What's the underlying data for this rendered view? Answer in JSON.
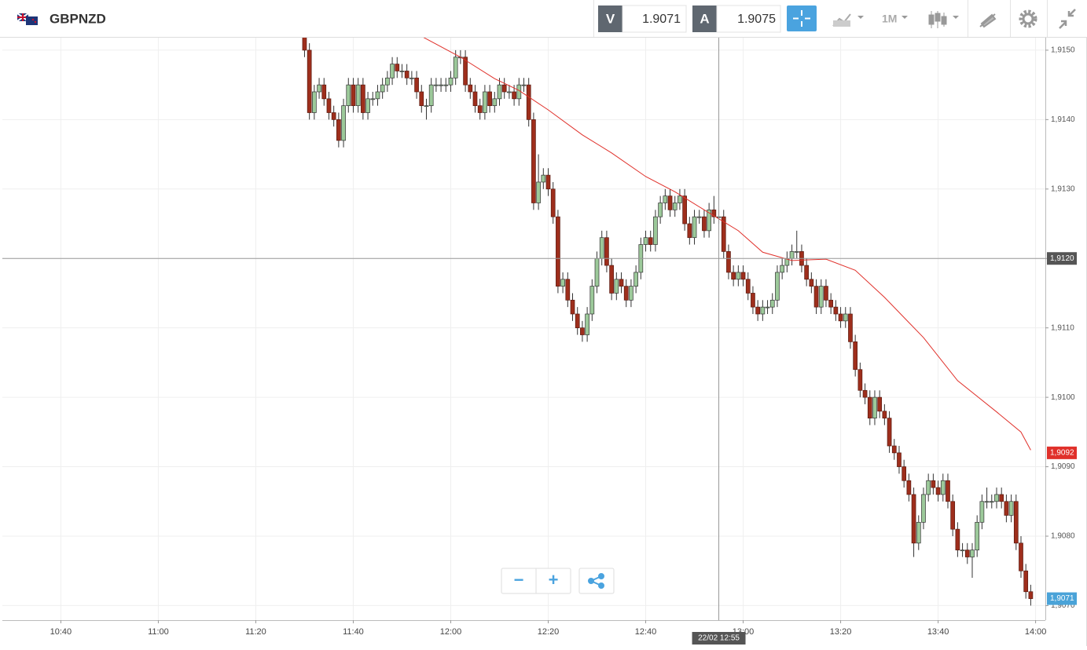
{
  "header": {
    "symbol": "GBPNZD",
    "bid_label": "V",
    "bid": "1.9071",
    "ask_label": "A",
    "ask": "1.9075",
    "timeframe": "1M"
  },
  "zoom": {
    "minus": "−",
    "plus": "+"
  },
  "chart_data": {
    "type": "candlestick",
    "x": [
      "11:30",
      "11:31",
      "11:32",
      "11:33",
      "11:34",
      "11:35",
      "11:36",
      "11:37",
      "11:38",
      "11:39",
      "11:40",
      "11:41",
      "11:42",
      "11:43",
      "11:44",
      "11:45",
      "11:46",
      "11:47",
      "11:48",
      "11:49",
      "11:50",
      "11:51",
      "11:52",
      "11:53",
      "11:54",
      "11:55",
      "11:56",
      "11:57",
      "11:58",
      "11:59",
      "12:00",
      "12:01",
      "12:02",
      "12:03",
      "12:04",
      "12:05",
      "12:06",
      "12:07",
      "12:08",
      "12:09",
      "12:10",
      "12:11",
      "12:12",
      "12:13",
      "12:14",
      "12:15",
      "12:16",
      "12:17",
      "12:18",
      "12:19",
      "12:20",
      "12:21",
      "12:22",
      "12:23",
      "12:24",
      "12:25",
      "12:26",
      "12:27",
      "12:28",
      "12:29",
      "12:30",
      "12:31",
      "12:32",
      "12:33",
      "12:34",
      "12:35",
      "12:36",
      "12:37",
      "12:38",
      "12:39",
      "12:40",
      "12:41",
      "12:42",
      "12:43",
      "12:44",
      "12:45",
      "12:46",
      "12:47",
      "12:48",
      "12:49",
      "12:50",
      "12:51",
      "12:52",
      "12:53",
      "12:54",
      "12:55",
      "12:56",
      "12:57",
      "12:58",
      "12:59",
      "13:00",
      "13:01",
      "13:02",
      "13:03",
      "13:04",
      "13:05",
      "13:06",
      "13:07",
      "13:08",
      "13:09",
      "13:10",
      "13:11",
      "13:12",
      "13:13",
      "13:14",
      "13:15",
      "13:16",
      "13:17",
      "13:18",
      "13:19",
      "13:20",
      "13:21",
      "13:22",
      "13:23",
      "13:24",
      "13:25",
      "13:26",
      "13:27",
      "13:28",
      "13:29",
      "13:30",
      "13:31",
      "13:32",
      "13:33",
      "13:34",
      "13:35",
      "13:36",
      "13:37",
      "13:38",
      "13:39",
      "13:40",
      "13:41",
      "13:42",
      "13:43",
      "13:44",
      "13:45",
      "13:46",
      "13:47",
      "13:48",
      "13:49",
      "13:50",
      "13:51",
      "13:52",
      "13:53",
      "13:54",
      "13:55",
      "13:56",
      "13:57",
      "13:58",
      "13:59"
    ],
    "open": [
      1.9152,
      1.915,
      1.9141,
      1.9144,
      1.9145,
      1.9143,
      1.9141,
      1.914,
      1.9137,
      1.9142,
      1.9145,
      1.9142,
      1.9145,
      1.9141,
      1.9143,
      1.9143,
      1.9144,
      1.9145,
      1.9146,
      1.9148,
      1.9147,
      1.9147,
      1.9146,
      1.9146,
      1.9144,
      1.9142,
      1.9142,
      1.9145,
      1.9145,
      1.9145,
      1.9145,
      1.9146,
      1.9149,
      1.9149,
      1.9145,
      1.9144,
      1.9142,
      1.9141,
      1.9144,
      1.9142,
      1.9143,
      1.9145,
      1.9144,
      1.9144,
      1.9143,
      1.9145,
      1.9145,
      1.914,
      1.9128,
      1.9131,
      1.9132,
      1.913,
      1.9126,
      1.9116,
      1.9117,
      1.9114,
      1.9112,
      1.911,
      1.9109,
      1.9112,
      1.9116,
      1.912,
      1.9123,
      1.9119,
      1.9115,
      1.9117,
      1.9116,
      1.9114,
      1.9116,
      1.9118,
      1.9122,
      1.9123,
      1.9122,
      1.9126,
      1.9128,
      1.9129,
      1.9127,
      1.9128,
      1.9129,
      1.9125,
      1.9123,
      1.9126,
      1.9126,
      1.9124,
      1.9127,
      1.9126,
      1.9126,
      1.9121,
      1.9118,
      1.9117,
      1.9118,
      1.9117,
      1.9115,
      1.9113,
      1.9112,
      1.9113,
      1.9113,
      1.9114,
      1.9118,
      1.9119,
      1.912,
      1.9121,
      1.9121,
      1.9119,
      1.9117,
      1.9116,
      1.9113,
      1.9116,
      1.9114,
      1.9113,
      1.9112,
      1.9111,
      1.9112,
      1.9108,
      1.9104,
      1.9101,
      1.91,
      1.9097,
      1.91,
      1.9098,
      1.9097,
      1.9093,
      1.9092,
      1.909,
      1.9088,
      1.9086,
      1.9079,
      1.9082,
      1.9086,
      1.9088,
      1.9087,
      1.9086,
      1.9088,
      1.9085,
      1.9081,
      1.9078,
      1.9078,
      1.9077,
      1.9078,
      1.9082,
      1.9085,
      1.9085,
      1.9085,
      1.9086,
      1.9085,
      1.9083,
      1.9085,
      1.9079,
      1.9075,
      1.9072
    ],
    "high": [
      1.9153,
      1.9151,
      1.9145,
      1.9146,
      1.9146,
      1.9144,
      1.9142,
      1.9141,
      1.9143,
      1.9146,
      1.9146,
      1.9146,
      1.9146,
      1.9144,
      1.9144,
      1.9145,
      1.9146,
      1.9147,
      1.9149,
      1.9149,
      1.9148,
      1.9148,
      1.9147,
      1.9147,
      1.9145,
      1.9143,
      1.9146,
      1.9146,
      1.9146,
      1.9146,
      1.9147,
      1.915,
      1.915,
      1.915,
      1.9146,
      1.9145,
      1.9143,
      1.9145,
      1.9145,
      1.9144,
      1.9146,
      1.9146,
      1.9145,
      1.9145,
      1.9146,
      1.9146,
      1.9146,
      1.9141,
      1.9135,
      1.9133,
      1.9133,
      1.9131,
      1.9127,
      1.9118,
      1.9118,
      1.9115,
      1.9113,
      1.9111,
      1.9113,
      1.9117,
      1.9121,
      1.9124,
      1.9124,
      1.912,
      1.9118,
      1.9118,
      1.9117,
      1.9117,
      1.9119,
      1.9123,
      1.9124,
      1.9124,
      1.9127,
      1.9129,
      1.913,
      1.913,
      1.9129,
      1.913,
      1.913,
      1.9126,
      1.9127,
      1.9127,
      1.9127,
      1.9128,
      1.9129,
      1.9127,
      1.9127,
      1.9122,
      1.9119,
      1.9119,
      1.9119,
      1.9118,
      1.9116,
      1.9114,
      1.9114,
      1.9114,
      1.9115,
      1.9119,
      1.912,
      1.9121,
      1.9122,
      1.9124,
      1.9122,
      1.912,
      1.9118,
      1.9117,
      1.9117,
      1.9117,
      1.9115,
      1.9114,
      1.9113,
      1.9113,
      1.9113,
      1.9109,
      1.9105,
      1.9102,
      1.9101,
      1.9101,
      1.9101,
      1.9099,
      1.9098,
      1.9094,
      1.9093,
      1.9091,
      1.9089,
      1.9087,
      1.9083,
      1.9087,
      1.9089,
      1.9089,
      1.9088,
      1.9089,
      1.9089,
      1.9086,
      1.9082,
      1.9079,
      1.9079,
      1.9079,
      1.9083,
      1.9086,
      1.9087,
      1.9086,
      1.9087,
      1.9087,
      1.9086,
      1.9086,
      1.9086,
      1.908,
      1.9076,
      1.9073
    ],
    "low": [
      1.9149,
      1.914,
      1.914,
      1.9143,
      1.9142,
      1.914,
      1.9139,
      1.9136,
      1.9136,
      1.9141,
      1.9141,
      1.9141,
      1.914,
      1.914,
      1.9142,
      1.9142,
      1.9143,
      1.9144,
      1.9145,
      1.9146,
      1.9146,
      1.9145,
      1.9145,
      1.9143,
      1.9141,
      1.914,
      1.9141,
      1.9144,
      1.9144,
      1.9144,
      1.9144,
      1.9145,
      1.9148,
      1.9144,
      1.9143,
      1.9141,
      1.914,
      1.914,
      1.9141,
      1.9141,
      1.9142,
      1.9143,
      1.9143,
      1.9142,
      1.9142,
      1.9144,
      1.9139,
      1.9127,
      1.9127,
      1.913,
      1.9129,
      1.9125,
      1.9115,
      1.9115,
      1.9113,
      1.9111,
      1.9109,
      1.9108,
      1.9108,
      1.9111,
      1.9115,
      1.9119,
      1.9118,
      1.9114,
      1.9114,
      1.9115,
      1.9113,
      1.9113,
      1.9115,
      1.9117,
      1.9121,
      1.9121,
      1.9121,
      1.9125,
      1.9127,
      1.9126,
      1.9126,
      1.9127,
      1.9124,
      1.9122,
      1.9122,
      1.9125,
      1.9123,
      1.9123,
      1.9125,
      1.9125,
      1.912,
      1.9117,
      1.9116,
      1.9116,
      1.9116,
      1.9114,
      1.9112,
      1.9111,
      1.9111,
      1.9112,
      1.9112,
      1.9113,
      1.9117,
      1.9118,
      1.9119,
      1.912,
      1.9118,
      1.9116,
      1.9115,
      1.9112,
      1.9112,
      1.9113,
      1.9112,
      1.9111,
      1.911,
      1.911,
      1.9107,
      1.9103,
      1.91,
      1.9099,
      1.9096,
      1.9096,
      1.9097,
      1.9096,
      1.9092,
      1.9091,
      1.9089,
      1.9087,
      1.9085,
      1.9077,
      1.9078,
      1.9081,
      1.9085,
      1.9086,
      1.9085,
      1.9085,
      1.9084,
      1.908,
      1.9077,
      1.9077,
      1.9076,
      1.9074,
      1.9077,
      1.9081,
      1.9084,
      1.9084,
      1.9084,
      1.9084,
      1.9082,
      1.9082,
      1.9078,
      1.9074,
      1.9071,
      1.907
    ],
    "close": [
      1.915,
      1.9141,
      1.9144,
      1.9145,
      1.9143,
      1.9141,
      1.914,
      1.9137,
      1.9142,
      1.9145,
      1.9142,
      1.9145,
      1.9141,
      1.9143,
      1.9143,
      1.9144,
      1.9145,
      1.9146,
      1.9148,
      1.9147,
      1.9147,
      1.9146,
      1.9146,
      1.9144,
      1.9142,
      1.9142,
      1.9145,
      1.9145,
      1.9145,
      1.9145,
      1.9146,
      1.9149,
      1.9149,
      1.9145,
      1.9144,
      1.9142,
      1.9141,
      1.9144,
      1.9142,
      1.9143,
      1.9145,
      1.9144,
      1.9144,
      1.9143,
      1.9145,
      1.9145,
      1.914,
      1.9128,
      1.9131,
      1.9132,
      1.913,
      1.9126,
      1.9116,
      1.9117,
      1.9114,
      1.9112,
      1.911,
      1.9109,
      1.9112,
      1.9116,
      1.912,
      1.9123,
      1.9119,
      1.9115,
      1.9117,
      1.9116,
      1.9114,
      1.9116,
      1.9118,
      1.9122,
      1.9123,
      1.9122,
      1.9126,
      1.9128,
      1.9129,
      1.9127,
      1.9128,
      1.9129,
      1.9125,
      1.9123,
      1.9126,
      1.9126,
      1.9124,
      1.9127,
      1.9126,
      1.9126,
      1.9121,
      1.9118,
      1.9117,
      1.9118,
      1.9117,
      1.9115,
      1.9113,
      1.9112,
      1.9113,
      1.9113,
      1.9114,
      1.9118,
      1.9119,
      1.912,
      1.9121,
      1.9121,
      1.9119,
      1.9117,
      1.9116,
      1.9113,
      1.9116,
      1.9114,
      1.9113,
      1.9112,
      1.9111,
      1.9112,
      1.9108,
      1.9104,
      1.9101,
      1.91,
      1.9097,
      1.91,
      1.9098,
      1.9097,
      1.9093,
      1.9092,
      1.909,
      1.9088,
      1.9086,
      1.9079,
      1.9082,
      1.9086,
      1.9088,
      1.9087,
      1.9086,
      1.9088,
      1.9085,
      1.9081,
      1.9078,
      1.9078,
      1.9077,
      1.9078,
      1.9082,
      1.9085,
      1.9085,
      1.9085,
      1.9086,
      1.9085,
      1.9083,
      1.9085,
      1.9079,
      1.9075,
      1.9072,
      1.9071
    ],
    "up_color": "#9cc99a",
    "down_color": "#9e2e1c",
    "xlim": [
      "10:28",
      "14:02"
    ],
    "xticks": [
      "10:40",
      "11:00",
      "11:20",
      "11:40",
      "12:00",
      "12:20",
      "12:40",
      "13:00",
      "13:20",
      "13:40",
      "14:00"
    ],
    "ylim": [
      1.90679,
      1.91518
    ],
    "yticks": [
      {
        "value": 1.907,
        "label": "1,9070"
      },
      {
        "value": 1.908,
        "label": "1,9080"
      },
      {
        "value": 1.909,
        "label": "1,9090"
      },
      {
        "value": 1.91,
        "label": "1,9100"
      },
      {
        "value": 1.911,
        "label": "1,9110"
      },
      {
        "value": 1.912,
        "label": "1,9120"
      },
      {
        "value": 1.913,
        "label": "1,9130"
      },
      {
        "value": 1.914,
        "label": "1,9140"
      },
      {
        "value": 1.915,
        "label": "1,9150"
      }
    ],
    "grid": true,
    "overlay": {
      "type": "line",
      "color": "#e0302a",
      "x": [
        "11:54",
        "12:02",
        "12:09",
        "12:14",
        "12:20",
        "12:27",
        "12:33",
        "12:40",
        "12:46",
        "12:52",
        "12:59",
        "13:04",
        "13:10",
        "13:17",
        "13:23",
        "13:29",
        "13:37",
        "13:44",
        "13:52",
        "13:57",
        "13:59"
      ],
      "values": [
        1.9152,
        1.9149,
        1.91459,
        1.91442,
        1.91414,
        1.91378,
        1.91352,
        1.91318,
        1.91296,
        1.9127,
        1.9124,
        1.91209,
        1.91197,
        1.91199,
        1.91183,
        1.91144,
        1.91086,
        1.91024,
        1.90979,
        1.9095,
        1.90924
      ],
      "last_label": {
        "value": 1.9092,
        "label": "1,9092"
      }
    },
    "last_price": {
      "value": 1.9071,
      "label": "1,9071",
      "color": "#4aa3d8"
    },
    "crosshair": {
      "x": "12:55",
      "x_label": "22/02 12:55",
      "y": {
        "value": 1.912,
        "label": "1,9120"
      }
    }
  }
}
